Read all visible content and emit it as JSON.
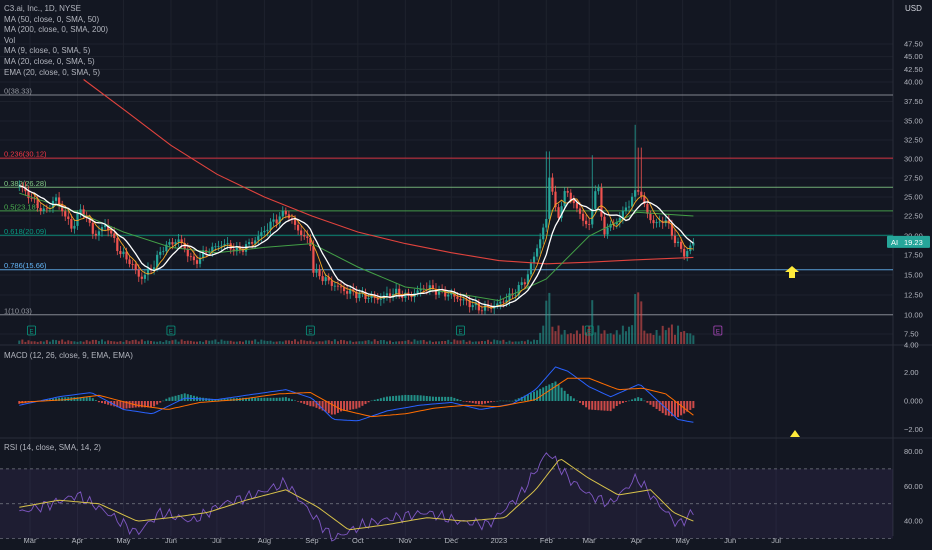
{
  "legend": {
    "title": "C3.ai, Inc., 1D, NYSE",
    "lines": [
      "MA (50, close, 0, SMA, 50)",
      "MA (200, close, 0, SMA, 200)",
      "Vol",
      "MA (9, close, 0, SMA, 5)",
      "MA (20, close, 0, SMA, 5)",
      "EMA (20, close, 0, SMA, 5)"
    ]
  },
  "macd_label": "MACD (12, 26, close, 9, EMA, EMA)",
  "rsi_label": "RSI (14, close, SMA, 14, 2)",
  "currency": "USD",
  "colors": {
    "background": "#131722",
    "up": "#26a69a",
    "down": "#ef5350",
    "ma_white": "#ffffff",
    "ma200": "#e0433d",
    "ma50": "#43a047",
    "ma_orange": "#f5a623",
    "macd": "#2962ff",
    "signal": "#ff6d00",
    "rsi": "#7e57c2",
    "rsi_ma": "#d8c24a",
    "arrow": "#ffeb3b"
  },
  "chart_data": [
    {
      "type": "candlestick",
      "title": "C3.ai, Inc., 1D, NYSE",
      "symbol": "AI",
      "last_price": "19.23",
      "ylim": [
        4,
        50
      ],
      "ylabel": "USD",
      "y_ticks": [
        4.0,
        7.5,
        10.0,
        12.5,
        15.0,
        17.5,
        20.0,
        22.5,
        25.0,
        27.5,
        30.0,
        32.5,
        35.0,
        37.5,
        40.0,
        42.5,
        45.0,
        47.5
      ],
      "x_ticks": [
        "Mar",
        "Apr",
        "May",
        "Jun",
        "Jul",
        "Aug",
        "Sep",
        "Oct",
        "Nov",
        "Dec",
        "2023",
        "Feb",
        "Mar",
        "Apr",
        "May",
        "Jun",
        "Jul"
      ],
      "close_path": [
        [
          "2022-02-22",
          26.5
        ],
        [
          "2022-03-01",
          25.0
        ],
        [
          "2022-03-10",
          23.0
        ],
        [
          "2022-03-18",
          24.8
        ],
        [
          "2022-03-28",
          21.0
        ],
        [
          "2022-04-04",
          23.5
        ],
        [
          "2022-04-12",
          20.0
        ],
        [
          "2022-04-20",
          21.5
        ],
        [
          "2022-04-28",
          18.0
        ],
        [
          "2022-05-06",
          16.5
        ],
        [
          "2022-05-12",
          14.5
        ],
        [
          "2022-05-20",
          16.0
        ],
        [
          "2022-05-27",
          18.5
        ],
        [
          "2022-06-06",
          19.5
        ],
        [
          "2022-06-16",
          16.5
        ],
        [
          "2022-06-24",
          18.0
        ],
        [
          "2022-07-05",
          19.0
        ],
        [
          "2022-07-15",
          18.0
        ],
        [
          "2022-07-26",
          19.5
        ],
        [
          "2022-08-05",
          21.5
        ],
        [
          "2022-08-15",
          23.0
        ],
        [
          "2022-08-24",
          20.5
        ],
        [
          "2022-08-31",
          19.0
        ],
        [
          "2022-09-02",
          15.5
        ],
        [
          "2022-09-13",
          14.0
        ],
        [
          "2022-09-23",
          13.0
        ],
        [
          "2022-10-03",
          12.5
        ],
        [
          "2022-10-14",
          12.0
        ],
        [
          "2022-10-25",
          12.8
        ],
        [
          "2022-11-03",
          12.3
        ],
        [
          "2022-11-14",
          13.5
        ],
        [
          "2022-11-22",
          13.0
        ],
        [
          "2022-12-01",
          12.5
        ],
        [
          "2022-12-12",
          11.5
        ],
        [
          "2022-12-20",
          10.8
        ],
        [
          "2022-12-30",
          11.2
        ],
        [
          "2023-01-10",
          12.5
        ],
        [
          "2023-01-19",
          14.5
        ],
        [
          "2023-01-26",
          18.5
        ],
        [
          "2023-02-01",
          22.0
        ],
        [
          "2023-02-03",
          28.0
        ],
        [
          "2023-02-08",
          22.0
        ],
        [
          "2023-02-14",
          26.0
        ],
        [
          "2023-02-22",
          23.0
        ],
        [
          "2023-03-01",
          21.0
        ],
        [
          "2023-03-06",
          27.5
        ],
        [
          "2023-03-10",
          20.5
        ],
        [
          "2023-03-20",
          22.0
        ],
        [
          "2023-03-28",
          24.5
        ],
        [
          "2023-04-03",
          26.5
        ],
        [
          "2023-04-05",
          24.0
        ],
        [
          "2023-04-12",
          21.5
        ],
        [
          "2023-04-20",
          22.0
        ],
        [
          "2023-04-27",
          19.0
        ],
        [
          "2023-05-03",
          17.5
        ],
        [
          "2023-05-08",
          19.23
        ]
      ],
      "spike_highs": [
        [
          "2023-02-02",
          31.0
        ],
        [
          "2023-03-03",
          30.5
        ],
        [
          "2023-03-31",
          34.5
        ],
        [
          "2023-04-03",
          31.5
        ]
      ],
      "ma200_path": [
        [
          "2022-04-05",
          40.5
        ],
        [
          "2022-05-01",
          36.5
        ],
        [
          "2022-06-01",
          31.8
        ],
        [
          "2022-07-01",
          28.0
        ],
        [
          "2022-08-01",
          25.0
        ],
        [
          "2022-09-01",
          22.5
        ],
        [
          "2022-10-01",
          20.5
        ],
        [
          "2022-11-01",
          19.0
        ],
        [
          "2022-12-01",
          17.8
        ],
        [
          "2023-01-01",
          16.8
        ],
        [
          "2023-02-01",
          16.4
        ],
        [
          "2023-03-01",
          16.6
        ],
        [
          "2023-04-01",
          16.9
        ],
        [
          "2023-05-08",
          17.2
        ]
      ],
      "ma50_path": [
        [
          "2022-02-22",
          25.5
        ],
        [
          "2022-04-01",
          23.0
        ],
        [
          "2022-05-01",
          20.5
        ],
        [
          "2022-06-01",
          18.5
        ],
        [
          "2022-07-01",
          17.8
        ],
        [
          "2022-08-01",
          18.5
        ],
        [
          "2022-09-01",
          19.0
        ],
        [
          "2022-10-01",
          16.0
        ],
        [
          "2022-11-01",
          13.5
        ],
        [
          "2022-12-01",
          12.8
        ],
        [
          "2023-01-01",
          11.8
        ],
        [
          "2023-02-01",
          14.5
        ],
        [
          "2023-03-01",
          20.0
        ],
        [
          "2023-04-01",
          23.0
        ],
        [
          "2023-05-08",
          22.5
        ]
      ],
      "fibonacci": [
        {
          "label": "0(38.33)",
          "value": 38.33,
          "color": "#9598a1"
        },
        {
          "label": "0.236(30.12)",
          "value": 30.12,
          "color": "#f23645"
        },
        {
          "label": "0.382(26.28)",
          "value": 26.28,
          "color": "#81c784"
        },
        {
          "label": "0.5(23.18)",
          "value": 23.18,
          "color": "#4caf50"
        },
        {
          "label": "0.618(20.09)",
          "value": 20.09,
          "color": "#089981"
        },
        {
          "label": "0.786(15.66)",
          "value": 15.66,
          "color": "#64b5f6"
        },
        {
          "label": "1(10.03)",
          "value": 10.03,
          "color": "#9598a1"
        }
      ],
      "volume_spikes": [
        [
          "2023-02-02",
          "high"
        ],
        [
          "2023-03-03",
          "high"
        ],
        [
          "2023-03-31",
          "high"
        ],
        [
          "2023-04-03",
          "high"
        ]
      ],
      "earnings_markers": [
        [
          "2022-03-02",
          "E"
        ],
        [
          "2022-06-01",
          "E"
        ],
        [
          "2022-08-31",
          "E"
        ],
        [
          "2022-12-07",
          "E"
        ],
        [
          "2023-03-01",
          "E"
        ],
        [
          "2023-05-24",
          "E"
        ]
      ]
    },
    {
      "type": "line",
      "title": "MACD (12, 26, close, 9, EMA, EMA)",
      "ylim": [
        -2.5,
        3.0
      ],
      "y_ticks": [
        2.0,
        0.0,
        -2.0
      ],
      "series": [
        {
          "name": "MACD",
          "points": [
            [
              "2022-02-22",
              -0.3
            ],
            [
              "2022-03-20",
              0.3
            ],
            [
              "2022-04-10",
              0.6
            ],
            [
              "2022-05-01",
              -0.6
            ],
            [
              "2022-05-20",
              -0.9
            ],
            [
              "2022-06-10",
              0.2
            ],
            [
              "2022-07-01",
              0.1
            ],
            [
              "2022-07-20",
              0.4
            ],
            [
              "2022-08-15",
              0.8
            ],
            [
              "2022-09-01",
              0.2
            ],
            [
              "2022-09-15",
              -1.3
            ],
            [
              "2022-10-01",
              -1.4
            ],
            [
              "2022-10-20",
              -0.7
            ],
            [
              "2022-11-10",
              -0.3
            ],
            [
              "2022-12-01",
              -0.1
            ],
            [
              "2022-12-20",
              -0.6
            ],
            [
              "2023-01-10",
              -0.2
            ],
            [
              "2023-01-25",
              0.8
            ],
            [
              "2023-02-07",
              2.4
            ],
            [
              "2023-02-15",
              2.1
            ],
            [
              "2023-03-01",
              1.0
            ],
            [
              "2023-03-15",
              0.3
            ],
            [
              "2023-04-03",
              1.2
            ],
            [
              "2023-04-15",
              0.0
            ],
            [
              "2023-04-28",
              -1.3
            ],
            [
              "2023-05-08",
              -1.5
            ]
          ]
        },
        {
          "name": "Signal",
          "points": [
            [
              "2022-02-22",
              -0.1
            ],
            [
              "2022-03-25",
              0.1
            ],
            [
              "2022-04-15",
              0.4
            ],
            [
              "2022-05-10",
              -0.3
            ],
            [
              "2022-05-30",
              -0.6
            ],
            [
              "2022-06-20",
              -0.1
            ],
            [
              "2022-07-15",
              0.1
            ],
            [
              "2022-08-10",
              0.5
            ],
            [
              "2022-08-31",
              0.6
            ],
            [
              "2022-09-20",
              -0.6
            ],
            [
              "2022-10-10",
              -1.1
            ],
            [
              "2022-11-01",
              -0.9
            ],
            [
              "2022-11-20",
              -0.5
            ],
            [
              "2022-12-10",
              -0.3
            ],
            [
              "2023-01-01",
              -0.4
            ],
            [
              "2023-01-25",
              0.1
            ],
            [
              "2023-02-15",
              1.6
            ],
            [
              "2023-03-01",
              1.6
            ],
            [
              "2023-03-20",
              0.8
            ],
            [
              "2023-04-05",
              0.9
            ],
            [
              "2023-04-20",
              0.5
            ],
            [
              "2023-05-08",
              -1.0
            ]
          ]
        }
      ]
    },
    {
      "type": "line",
      "title": "RSI (14, close, SMA, 14, 2)",
      "ylim": [
        20,
        90
      ],
      "y_ticks": [
        80.0,
        60.0,
        40.0,
        20.0
      ],
      "series": [
        {
          "name": "RSI",
          "points": [
            [
              "2022-02-22",
              45
            ],
            [
              "2022-03-15",
              50
            ],
            [
              "2022-04-01",
              55
            ],
            [
              "2022-04-20",
              45
            ],
            [
              "2022-05-10",
              33
            ],
            [
              "2022-05-25",
              45
            ],
            [
              "2022-06-15",
              40
            ],
            [
              "2022-07-05",
              50
            ],
            [
              "2022-07-25",
              55
            ],
            [
              "2022-08-15",
              62
            ],
            [
              "2022-08-31",
              45
            ],
            [
              "2022-09-15",
              30
            ],
            [
              "2022-10-05",
              38
            ],
            [
              "2022-10-25",
              42
            ],
            [
              "2022-11-15",
              45
            ],
            [
              "2022-12-05",
              40
            ],
            [
              "2022-12-25",
              38
            ],
            [
              "2023-01-15",
              55
            ],
            [
              "2023-02-02",
              80
            ],
            [
              "2023-02-15",
              65
            ],
            [
              "2023-03-01",
              55
            ],
            [
              "2023-03-15",
              50
            ],
            [
              "2023-04-01",
              65
            ],
            [
              "2023-04-15",
              50
            ],
            [
              "2023-04-28",
              38
            ],
            [
              "2023-05-08",
              45
            ]
          ]
        },
        {
          "name": "RSI MA",
          "points": [
            [
              "2022-02-22",
              48
            ],
            [
              "2022-03-20",
              52
            ],
            [
              "2022-04-15",
              50
            ],
            [
              "2022-05-10",
              40
            ],
            [
              "2022-06-01",
              42
            ],
            [
              "2022-06-25",
              45
            ],
            [
              "2022-07-20",
              52
            ],
            [
              "2022-08-15",
              58
            ],
            [
              "2022-09-05",
              48
            ],
            [
              "2022-09-25",
              35
            ],
            [
              "2022-10-20",
              38
            ],
            [
              "2022-11-15",
              42
            ],
            [
              "2022-12-10",
              40
            ],
            [
              "2023-01-05",
              42
            ],
            [
              "2023-01-25",
              58
            ],
            [
              "2023-02-10",
              76
            ],
            [
              "2023-02-28",
              65
            ],
            [
              "2023-03-20",
              55
            ],
            [
              "2023-04-10",
              58
            ],
            [
              "2023-04-25",
              45
            ],
            [
              "2023-05-08",
              40
            ]
          ]
        }
      ]
    }
  ]
}
